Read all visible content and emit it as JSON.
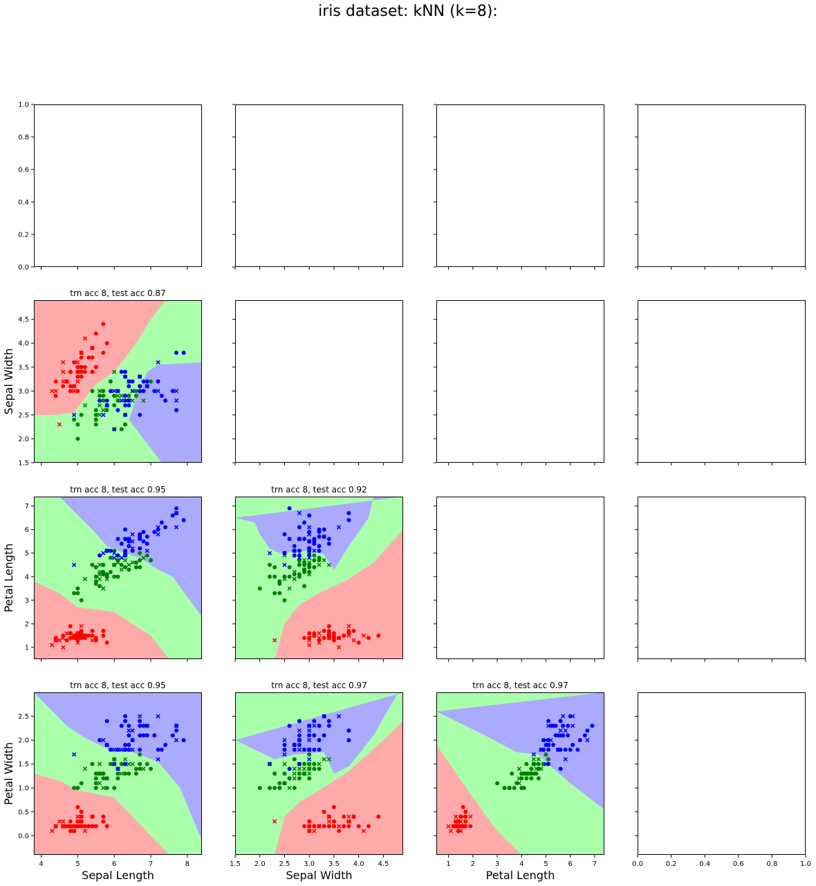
{
  "figure": {
    "title": "iris dataset: kNN (k=8):"
  },
  "colors": {
    "region_setosa": "#ffaaaa",
    "region_versicolor": "#aaffaa",
    "region_virginica": "#aaaaff",
    "point_setosa": "#ff0000",
    "point_versicolor": "#008000",
    "point_virginica": "#0000ff"
  },
  "axes": {
    "sl": {
      "label": "Sepal Length",
      "range": [
        3.8,
        8.4
      ],
      "ticks": [
        4,
        5,
        6,
        7,
        8
      ]
    },
    "sw": {
      "label": "Sepal Width",
      "range": [
        1.5,
        4.9
      ],
      "ticks": [
        1.5,
        2.0,
        2.5,
        3.0,
        3.5,
        4.0,
        4.5
      ]
    },
    "pl": {
      "label": "Petal Length",
      "range": [
        0.5,
        7.4
      ],
      "ticks": [
        1,
        2,
        3,
        4,
        5,
        6,
        7
      ]
    },
    "pw": {
      "label": "Petal Width",
      "range": [
        -0.4,
        3.0
      ],
      "ticks": [
        0.0,
        0.5,
        1.0,
        1.5,
        2.0,
        2.5
      ]
    },
    "unit": {
      "range": [
        0.0,
        1.0
      ],
      "ticks": [
        0.0,
        0.2,
        0.4,
        0.6,
        0.8,
        1.0
      ]
    }
  },
  "chart_data": [
    {
      "type": "scatter",
      "title": "trn acc 8, test acc 0.87",
      "x": "sl",
      "y": "sw",
      "xlabel": "",
      "ylabel": "Sepal Width",
      "boundary_x_range": [
        3.8,
        8.4
      ],
      "boundary_y_range": [
        1.5,
        4.9
      ],
      "boundaries": {
        "class_a_above": [
          [
            3.8,
            2.5
          ],
          [
            4.4,
            2.5
          ],
          [
            4.9,
            2.55
          ],
          [
            5.2,
            2.85
          ],
          [
            5.5,
            3.15
          ],
          [
            5.8,
            3.3
          ],
          [
            6.0,
            3.4
          ],
          [
            6.6,
            4.0
          ],
          [
            7.0,
            4.5
          ],
          [
            7.4,
            4.9
          ]
        ],
        "class_b_below": [
          [
            3.8,
            1.5
          ],
          [
            7.3,
            1.5
          ],
          [
            6.4,
            2.4
          ],
          [
            6.5,
            2.6
          ],
          [
            6.6,
            2.9
          ],
          [
            6.8,
            3.2
          ],
          [
            6.9,
            3.4
          ],
          [
            7.2,
            3.55
          ],
          [
            8.4,
            3.6
          ]
        ]
      }
    },
    {
      "type": "scatter",
      "title": "trn acc 8, test acc 0.95",
      "x": "sl",
      "y": "pl",
      "xlabel": "",
      "ylabel": "Petal Length",
      "boundary_x_range": [
        3.8,
        8.4
      ],
      "boundary_y_range": [
        0.5,
        7.4
      ],
      "boundaries": {
        "class_a_below": [
          [
            3.8,
            3.8
          ],
          [
            4.5,
            3.3
          ],
          [
            5.0,
            2.7
          ],
          [
            6.0,
            2.5
          ],
          [
            7.0,
            1.5
          ],
          [
            7.5,
            0.5
          ]
        ],
        "class_b_above": [
          [
            4.5,
            7.4
          ],
          [
            5.4,
            6.0
          ],
          [
            5.8,
            5.3
          ],
          [
            6.2,
            5.05
          ],
          [
            6.7,
            4.8
          ],
          [
            7.2,
            4.3
          ],
          [
            7.6,
            4.0
          ],
          [
            8.4,
            2.3
          ]
        ]
      }
    },
    {
      "type": "scatter",
      "title": "trn acc 8, test acc 0.92",
      "x": "sw",
      "y": "pl",
      "xlabel": "",
      "ylabel": "",
      "boundary_x_range": [
        1.5,
        4.9
      ],
      "boundary_y_range": [
        0.5,
        7.4
      ],
      "boundaries": {
        "class_a_below": [
          [
            2.3,
            0.5
          ],
          [
            2.5,
            2.0
          ],
          [
            2.8,
            2.8
          ],
          [
            3.2,
            3.3
          ],
          [
            3.8,
            3.9
          ],
          [
            4.3,
            4.6
          ],
          [
            4.9,
            6.0
          ]
        ],
        "class_b_above": [
          [
            1.5,
            6.5
          ],
          [
            1.9,
            6.3
          ],
          [
            2.0,
            5.8
          ],
          [
            2.2,
            5.2
          ],
          [
            2.4,
            5.0
          ],
          [
            3.0,
            5.1
          ],
          [
            3.3,
            4.95
          ],
          [
            3.5,
            4.3
          ],
          [
            3.8,
            5.3
          ],
          [
            4.2,
            6.5
          ],
          [
            4.3,
            7.4
          ]
        ]
      }
    },
    {
      "type": "scatter",
      "title": "trn acc 8, test acc 0.95",
      "x": "sl",
      "y": "pw",
      "xlabel": "Sepal Length",
      "ylabel": "Petal Width",
      "boundary_x_range": [
        3.8,
        8.4
      ],
      "boundary_y_range": [
        -0.4,
        3.0
      ],
      "boundaries": {
        "class_a_below": [
          [
            3.8,
            1.3
          ],
          [
            4.5,
            1.15
          ],
          [
            5.0,
            0.95
          ],
          [
            6.0,
            0.8
          ],
          [
            7.0,
            0.0
          ],
          [
            7.5,
            -0.4
          ]
        ],
        "class_b_above": [
          [
            3.8,
            3.0
          ],
          [
            4.7,
            2.3
          ],
          [
            5.2,
            2.05
          ],
          [
            6.0,
            1.75
          ],
          [
            6.5,
            1.75
          ],
          [
            7.2,
            1.55
          ],
          [
            7.8,
            1.0
          ],
          [
            8.4,
            -0.1
          ]
        ]
      }
    },
    {
      "type": "scatter",
      "title": "trn acc 8, test acc 0.97",
      "x": "sw",
      "y": "pw",
      "xlabel": "Sepal Width",
      "ylabel": "",
      "boundary_x_range": [
        1.5,
        4.9
      ],
      "boundary_y_range": [
        -0.4,
        3.0
      ],
      "boundaries": {
        "class_a_below": [
          [
            2.3,
            -0.4
          ],
          [
            2.5,
            0.4
          ],
          [
            2.8,
            0.7
          ],
          [
            3.2,
            0.95
          ],
          [
            3.8,
            1.35
          ],
          [
            4.5,
            2.0
          ],
          [
            4.9,
            2.4
          ]
        ],
        "class_b_above": [
          [
            1.5,
            2.0
          ],
          [
            2.0,
            1.75
          ],
          [
            2.3,
            1.6
          ],
          [
            2.7,
            1.7
          ],
          [
            3.3,
            1.75
          ],
          [
            3.5,
            1.3
          ],
          [
            3.8,
            1.45
          ],
          [
            4.3,
            2.1
          ],
          [
            4.8,
            3.0
          ]
        ]
      }
    },
    {
      "type": "scatter",
      "title": "trn acc 8, test acc 0.97",
      "x": "pl",
      "y": "pw",
      "xlabel": "Petal Length",
      "ylabel": "",
      "boundary_x_range": [
        0.5,
        7.4
      ],
      "boundary_y_range": [
        -0.4,
        3.0
      ],
      "boundaries": {
        "class_a_below": [
          [
            0.5,
            1.9
          ],
          [
            2.0,
            0.8
          ],
          [
            3.0,
            0.1
          ],
          [
            4.0,
            -0.4
          ]
        ],
        "class_b_above": [
          [
            0.5,
            2.6
          ],
          [
            2.5,
            2.1
          ],
          [
            3.8,
            1.75
          ],
          [
            4.7,
            1.7
          ],
          [
            5.2,
            1.45
          ],
          [
            6.0,
            1.1
          ],
          [
            7.4,
            0.55
          ]
        ]
      }
    }
  ],
  "samples": {
    "setosa": [
      [
        5.1,
        3.5,
        1.4,
        0.2
      ],
      [
        4.9,
        3.0,
        1.4,
        0.2
      ],
      [
        4.7,
        3.2,
        1.3,
        0.2
      ],
      [
        4.6,
        3.1,
        1.5,
        0.2
      ],
      [
        5.0,
        3.6,
        1.4,
        0.2
      ],
      [
        5.4,
        3.9,
        1.7,
        0.4
      ],
      [
        4.6,
        3.4,
        1.4,
        0.3
      ],
      [
        5.0,
        3.4,
        1.5,
        0.2
      ],
      [
        4.4,
        2.9,
        1.4,
        0.2
      ],
      [
        4.9,
        3.1,
        1.5,
        0.1
      ],
      [
        5.4,
        3.7,
        1.5,
        0.2
      ],
      [
        4.8,
        3.4,
        1.6,
        0.2
      ],
      [
        4.8,
        3.0,
        1.4,
        0.1
      ],
      [
        4.3,
        3.0,
        1.1,
        0.1
      ],
      [
        5.8,
        4.0,
        1.2,
        0.2
      ],
      [
        5.7,
        4.4,
        1.5,
        0.4
      ],
      [
        5.4,
        3.9,
        1.3,
        0.4
      ],
      [
        5.1,
        3.5,
        1.4,
        0.3
      ],
      [
        5.7,
        3.8,
        1.7,
        0.3
      ],
      [
        5.1,
        3.8,
        1.5,
        0.3
      ],
      [
        5.4,
        3.4,
        1.7,
        0.2
      ],
      [
        5.1,
        3.7,
        1.5,
        0.4
      ],
      [
        4.6,
        3.6,
        1.0,
        0.2
      ],
      [
        5.1,
        3.3,
        1.7,
        0.5
      ],
      [
        4.8,
        3.4,
        1.9,
        0.2
      ],
      [
        5.0,
        3.0,
        1.6,
        0.2
      ],
      [
        5.0,
        3.4,
        1.6,
        0.4
      ],
      [
        5.2,
        3.5,
        1.5,
        0.2
      ],
      [
        5.2,
        3.4,
        1.4,
        0.2
      ],
      [
        4.7,
        3.2,
        1.6,
        0.2
      ],
      [
        4.8,
        3.1,
        1.6,
        0.2
      ],
      [
        5.4,
        3.4,
        1.5,
        0.4
      ],
      [
        5.2,
        4.1,
        1.5,
        0.1
      ],
      [
        5.5,
        4.2,
        1.4,
        0.2
      ],
      [
        4.9,
        3.1,
        1.5,
        0.2
      ],
      [
        5.0,
        3.2,
        1.2,
        0.2
      ],
      [
        5.5,
        3.5,
        1.3,
        0.2
      ],
      [
        4.9,
        3.6,
        1.4,
        0.1
      ],
      [
        4.4,
        3.0,
        1.3,
        0.2
      ],
      [
        5.1,
        3.4,
        1.5,
        0.2
      ],
      [
        5.0,
        3.5,
        1.3,
        0.3
      ],
      [
        4.5,
        2.3,
        1.3,
        0.3
      ],
      [
        4.4,
        3.2,
        1.3,
        0.2
      ],
      [
        5.0,
        3.5,
        1.6,
        0.6
      ],
      [
        5.1,
        3.8,
        1.9,
        0.4
      ],
      [
        4.8,
        3.0,
        1.4,
        0.3
      ],
      [
        5.1,
        3.8,
        1.6,
        0.2
      ],
      [
        4.6,
        3.2,
        1.4,
        0.2
      ],
      [
        5.3,
        3.7,
        1.5,
        0.2
      ],
      [
        5.0,
        3.3,
        1.4,
        0.2
      ]
    ],
    "versicolor": [
      [
        7.0,
        3.2,
        4.7,
        1.4
      ],
      [
        6.4,
        3.2,
        4.5,
        1.5
      ],
      [
        6.9,
        3.1,
        4.9,
        1.5
      ],
      [
        5.5,
        2.3,
        4.0,
        1.3
      ],
      [
        6.5,
        2.8,
        4.6,
        1.5
      ],
      [
        5.7,
        2.8,
        4.5,
        1.3
      ],
      [
        6.3,
        3.3,
        4.7,
        1.6
      ],
      [
        4.9,
        2.4,
        3.3,
        1.0
      ],
      [
        6.6,
        2.9,
        4.6,
        1.3
      ],
      [
        5.2,
        2.7,
        3.9,
        1.4
      ],
      [
        5.0,
        2.0,
        3.5,
        1.0
      ],
      [
        5.9,
        3.0,
        4.2,
        1.5
      ],
      [
        6.0,
        2.2,
        4.0,
        1.0
      ],
      [
        6.1,
        2.9,
        4.7,
        1.4
      ],
      [
        5.6,
        2.9,
        3.6,
        1.3
      ],
      [
        6.7,
        3.1,
        4.4,
        1.4
      ],
      [
        5.6,
        3.0,
        4.5,
        1.5
      ],
      [
        5.8,
        2.7,
        4.1,
        1.0
      ],
      [
        6.2,
        2.2,
        4.5,
        1.5
      ],
      [
        5.6,
        2.5,
        3.9,
        1.1
      ],
      [
        5.9,
        3.2,
        4.8,
        1.8
      ],
      [
        6.1,
        2.8,
        4.0,
        1.3
      ],
      [
        6.3,
        2.5,
        4.9,
        1.5
      ],
      [
        6.1,
        2.8,
        4.7,
        1.2
      ],
      [
        6.4,
        2.9,
        4.3,
        1.3
      ],
      [
        6.6,
        3.0,
        4.4,
        1.4
      ],
      [
        6.8,
        2.8,
        4.8,
        1.4
      ],
      [
        6.7,
        3.0,
        5.0,
        1.7
      ],
      [
        6.0,
        2.9,
        4.5,
        1.5
      ],
      [
        5.7,
        2.6,
        3.5,
        1.0
      ],
      [
        5.5,
        2.4,
        3.8,
        1.1
      ],
      [
        5.5,
        2.4,
        3.7,
        1.0
      ],
      [
        5.8,
        2.7,
        3.9,
        1.2
      ],
      [
        6.0,
        2.7,
        5.1,
        1.6
      ],
      [
        5.4,
        3.0,
        4.5,
        1.5
      ],
      [
        6.0,
        3.4,
        4.5,
        1.6
      ],
      [
        6.7,
        3.1,
        4.7,
        1.5
      ],
      [
        6.3,
        2.3,
        4.4,
        1.3
      ],
      [
        5.6,
        3.0,
        4.1,
        1.3
      ],
      [
        5.5,
        2.5,
        4.0,
        1.3
      ],
      [
        5.5,
        2.6,
        4.4,
        1.2
      ],
      [
        6.1,
        3.0,
        4.6,
        1.4
      ],
      [
        5.8,
        2.6,
        4.0,
        1.2
      ],
      [
        5.0,
        2.3,
        3.3,
        1.0
      ],
      [
        5.6,
        2.7,
        4.2,
        1.3
      ],
      [
        5.7,
        3.0,
        4.2,
        1.2
      ],
      [
        5.7,
        2.9,
        4.2,
        1.3
      ],
      [
        6.2,
        2.9,
        4.3,
        1.3
      ],
      [
        5.1,
        2.5,
        3.0,
        1.1
      ],
      [
        5.7,
        2.8,
        4.1,
        1.3
      ]
    ],
    "virginica": [
      [
        6.3,
        3.3,
        6.0,
        2.5
      ],
      [
        5.8,
        2.7,
        5.1,
        1.9
      ],
      [
        7.1,
        3.0,
        5.9,
        2.1
      ],
      [
        6.3,
        2.9,
        5.6,
        1.8
      ],
      [
        6.5,
        3.0,
        5.8,
        2.2
      ],
      [
        7.6,
        3.0,
        6.6,
        2.1
      ],
      [
        4.9,
        2.5,
        4.5,
        1.7
      ],
      [
        7.3,
        2.9,
        6.3,
        1.8
      ],
      [
        6.7,
        2.5,
        5.8,
        1.8
      ],
      [
        7.2,
        3.6,
        6.1,
        2.5
      ],
      [
        6.5,
        3.2,
        5.1,
        2.0
      ],
      [
        6.4,
        2.7,
        5.3,
        1.9
      ],
      [
        6.8,
        3.0,
        5.5,
        2.1
      ],
      [
        5.7,
        2.5,
        5.0,
        2.0
      ],
      [
        5.8,
        2.8,
        5.1,
        2.4
      ],
      [
        6.4,
        3.2,
        5.3,
        2.3
      ],
      [
        6.5,
        3.0,
        5.5,
        1.8
      ],
      [
        7.7,
        3.8,
        6.7,
        2.2
      ],
      [
        7.7,
        2.6,
        6.9,
        2.3
      ],
      [
        6.0,
        2.2,
        5.0,
        1.5
      ],
      [
        6.9,
        3.2,
        5.7,
        2.3
      ],
      [
        5.6,
        2.8,
        4.9,
        2.0
      ],
      [
        7.7,
        2.8,
        6.7,
        2.0
      ],
      [
        6.3,
        2.7,
        4.9,
        1.8
      ],
      [
        6.7,
        3.3,
        5.7,
        2.1
      ],
      [
        7.2,
        3.2,
        6.0,
        1.8
      ],
      [
        6.2,
        2.8,
        4.8,
        1.8
      ],
      [
        6.1,
        3.0,
        4.9,
        1.8
      ],
      [
        6.4,
        2.8,
        5.6,
        2.1
      ],
      [
        7.2,
        3.0,
        5.8,
        1.6
      ],
      [
        7.4,
        2.8,
        6.1,
        1.9
      ],
      [
        7.9,
        3.8,
        6.4,
        2.0
      ],
      [
        6.4,
        2.8,
        5.6,
        2.2
      ],
      [
        6.3,
        2.8,
        5.1,
        1.5
      ],
      [
        6.1,
        2.6,
        5.6,
        1.4
      ],
      [
        7.7,
        3.0,
        6.1,
        2.3
      ],
      [
        6.3,
        3.4,
        5.6,
        2.4
      ],
      [
        6.4,
        3.1,
        5.5,
        1.8
      ],
      [
        6.0,
        3.0,
        4.8,
        1.8
      ],
      [
        6.9,
        3.1,
        5.4,
        2.1
      ],
      [
        6.7,
        3.1,
        5.6,
        2.4
      ],
      [
        6.9,
        3.1,
        5.1,
        2.3
      ],
      [
        5.8,
        2.7,
        5.1,
        1.9
      ],
      [
        6.8,
        3.2,
        5.9,
        2.3
      ],
      [
        6.7,
        3.3,
        5.7,
        2.5
      ],
      [
        6.7,
        3.0,
        5.2,
        2.3
      ],
      [
        6.3,
        2.5,
        5.0,
        1.9
      ],
      [
        6.5,
        3.0,
        5.2,
        2.0
      ],
      [
        6.2,
        3.4,
        5.4,
        2.3
      ],
      [
        5.9,
        3.0,
        5.1,
        1.8
      ]
    ]
  },
  "test_indices": [
    1,
    4,
    6,
    9,
    13,
    16,
    19,
    22,
    26,
    29,
    32,
    35,
    38,
    41,
    44,
    47
  ]
}
